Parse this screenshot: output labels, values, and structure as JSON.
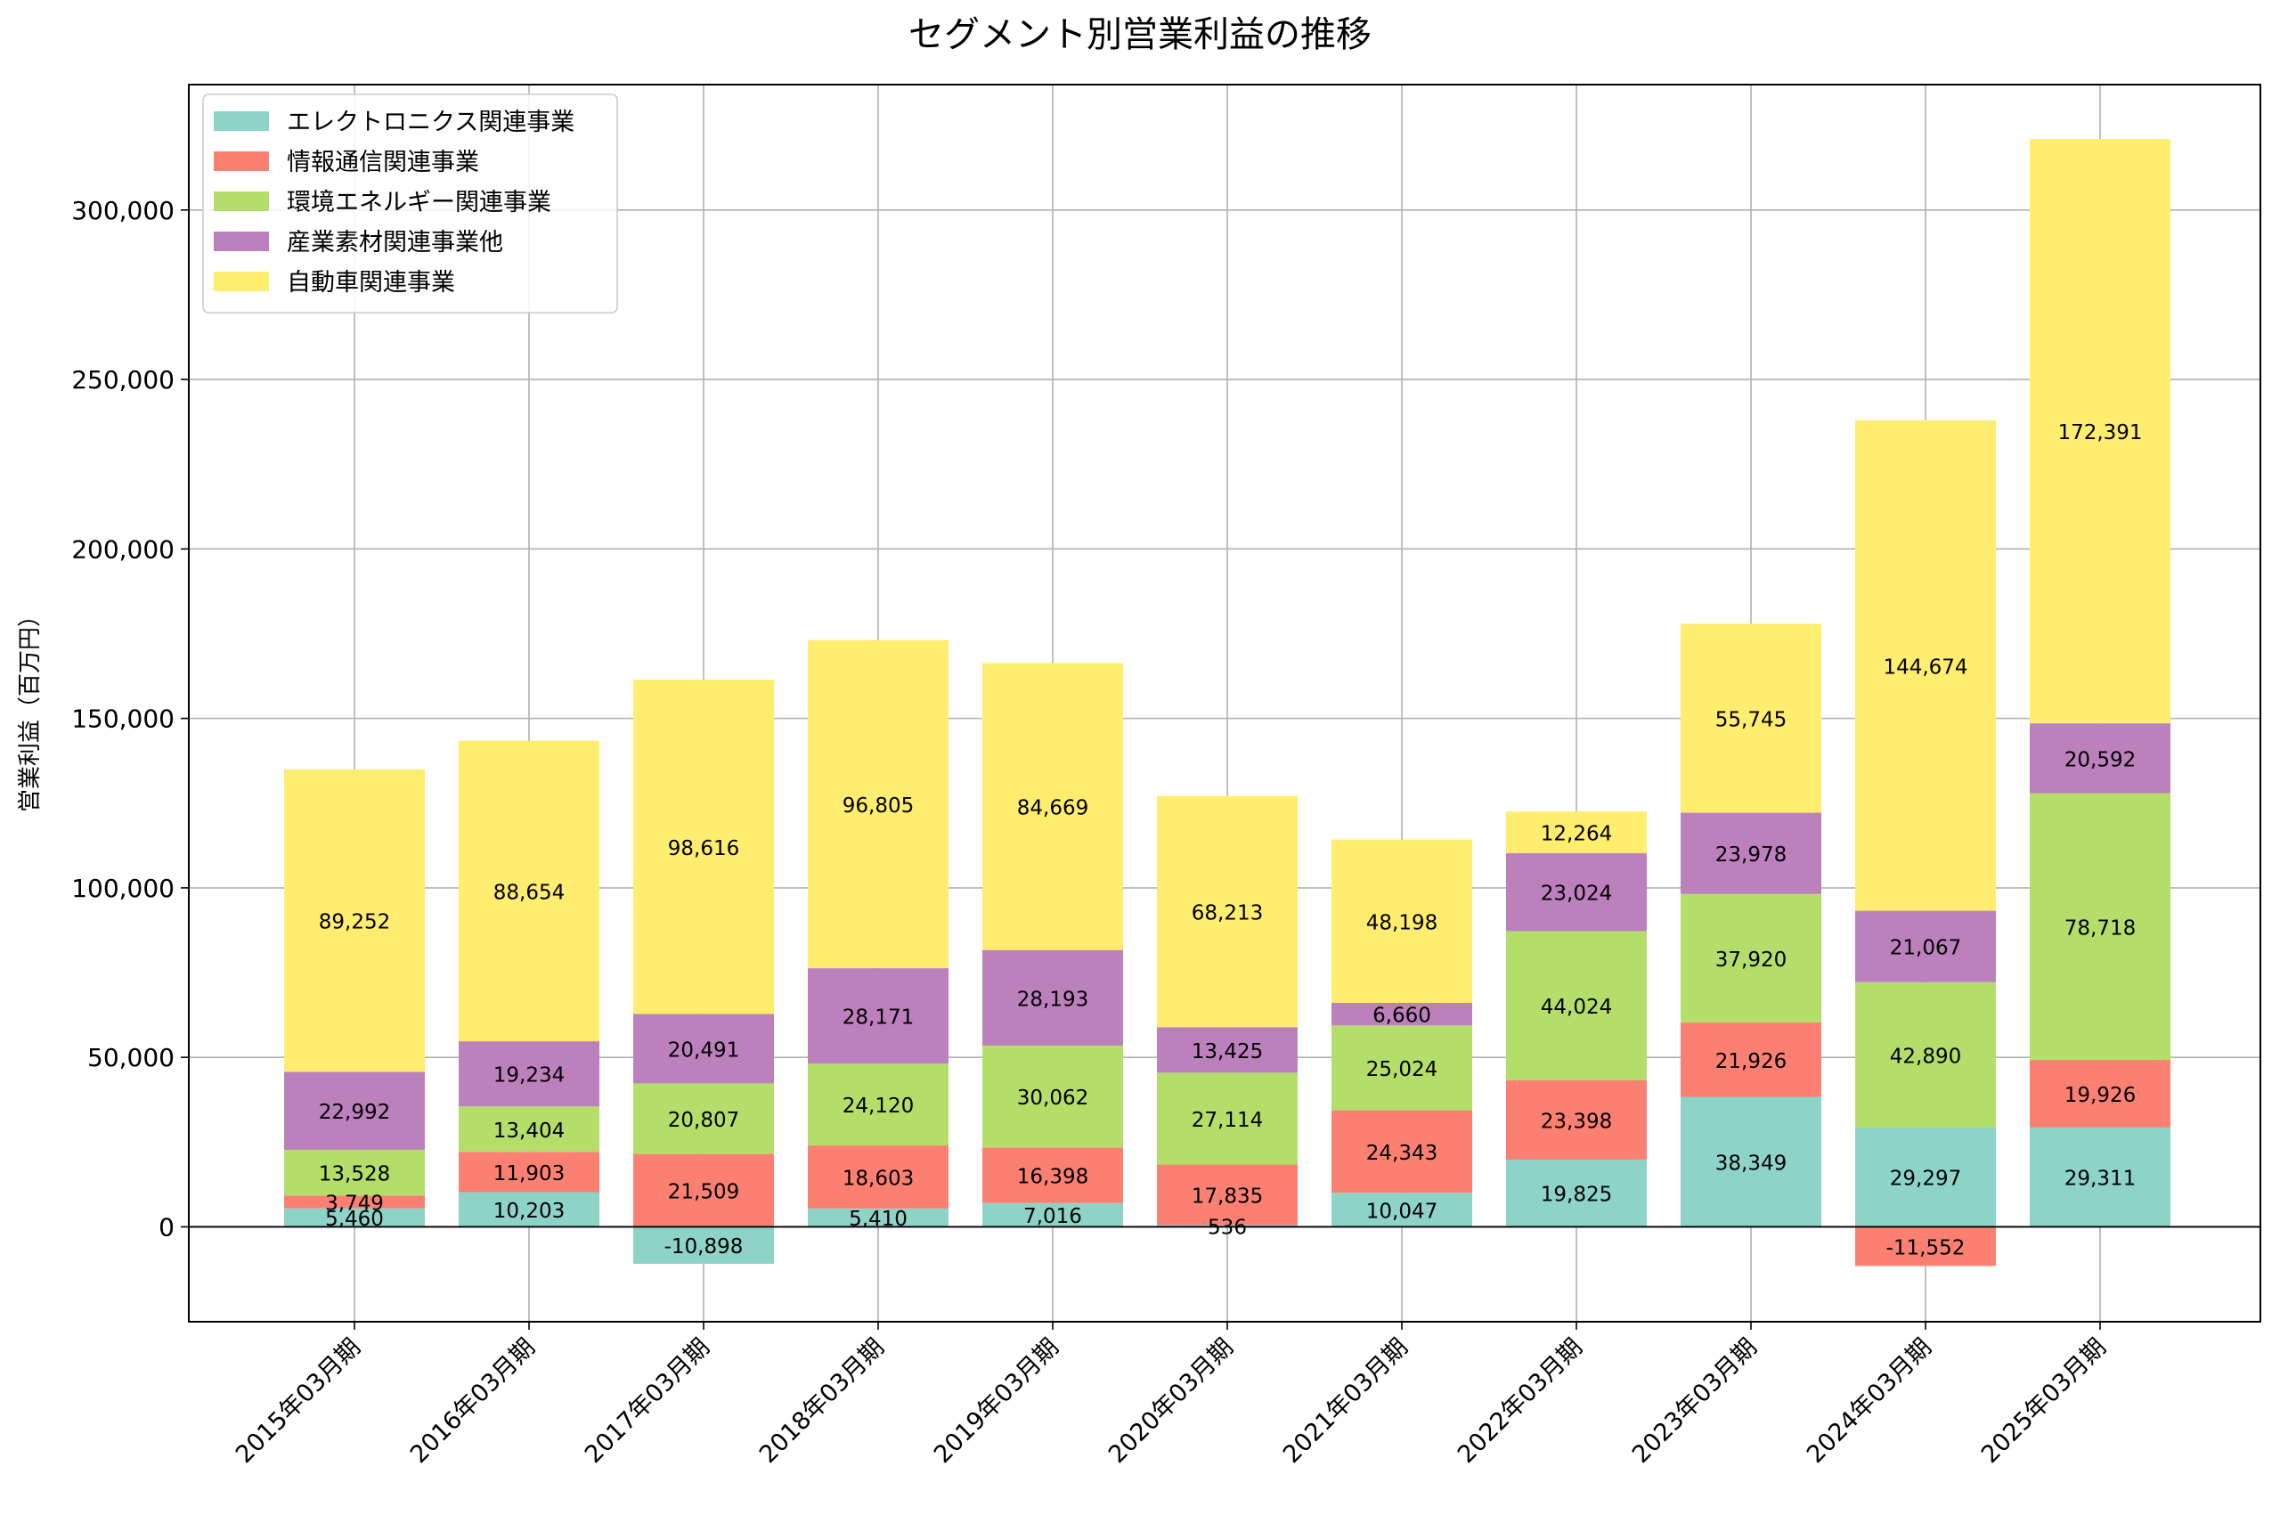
{
  "chart_data": {
    "type": "bar",
    "stacked": true,
    "title": "セグメント別営業利益の推移",
    "xlabel": "",
    "ylabel": "営業利益（百万円）",
    "ylim": [
      -28000,
      337000
    ],
    "yticks": [
      0,
      50000,
      100000,
      150000,
      200000,
      250000,
      300000
    ],
    "ytick_labels": [
      "0",
      "50,000",
      "100,000",
      "150,000",
      "200,000",
      "250,000",
      "300,000"
    ],
    "grid": true,
    "legend_position": "top-left",
    "categories": [
      "2015年03月期",
      "2016年03月期",
      "2017年03月期",
      "2018年03月期",
      "2019年03月期",
      "2020年03月期",
      "2021年03月期",
      "2022年03月期",
      "2023年03月期",
      "2024年03月期",
      "2025年03月期"
    ],
    "series": [
      {
        "name": "エレクトロニクス関連事業",
        "color": "#8dd3c7",
        "values": [
          5460,
          10203,
          -10898,
          5410,
          7016,
          536,
          10047,
          19825,
          38349,
          29297,
          29311
        ]
      },
      {
        "name": "情報通信関連事業",
        "color": "#fb8072",
        "values": [
          3749,
          11903,
          21509,
          18603,
          16398,
          17835,
          24343,
          23398,
          21926,
          -11552,
          19926
        ]
      },
      {
        "name": "環境エネルギー関連事業",
        "color": "#b3de69",
        "values": [
          13528,
          13404,
          20807,
          24120,
          30062,
          27114,
          25024,
          44024,
          37920,
          42890,
          78718
        ]
      },
      {
        "name": "産業素材関連事業他",
        "color": "#bc80bd",
        "values": [
          22992,
          19234,
          20491,
          28171,
          28193,
          13425,
          6660,
          23024,
          23978,
          21067,
          20592
        ]
      },
      {
        "name": "自動車関連事業",
        "color": "#ffed6f",
        "values": [
          89252,
          88654,
          98616,
          96805,
          84669,
          68213,
          48198,
          12264,
          55745,
          144674,
          172391
        ]
      }
    ]
  }
}
